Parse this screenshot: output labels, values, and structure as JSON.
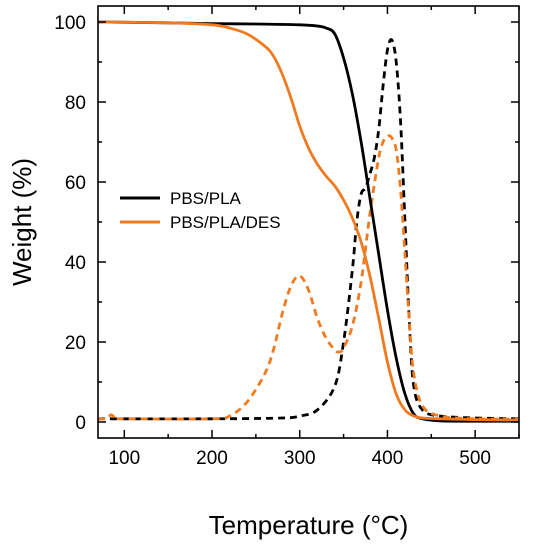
{
  "chart_data": {
    "type": "line",
    "xlabel": "Temperature (°C)",
    "ylabel": "Weight (%)",
    "xlim": [
      70,
      550
    ],
    "ylim": [
      -4,
      104
    ],
    "x_ticks": [
      100,
      200,
      300,
      400,
      500
    ],
    "y_ticks": [
      0,
      20,
      40,
      60,
      80,
      100
    ],
    "legend_position": "center-left",
    "series": [
      {
        "name": "PBS/PLA",
        "color": "#000000",
        "dash": "solid",
        "x": [
          70,
          150,
          200,
          250,
          300,
          320,
          330,
          340,
          350,
          360,
          370,
          380,
          390,
          400,
          410,
          420,
          430,
          440,
          460,
          500,
          550
        ],
        "y": [
          100,
          99.8,
          99.6,
          99.5,
          99.3,
          99,
          98.5,
          97,
          91,
          82,
          70,
          56,
          42,
          28,
          16,
          7,
          2,
          0.8,
          0.3,
          0.2,
          0.2
        ]
      },
      {
        "name": "PBS/PLA/DES",
        "color": "#f07a20",
        "dash": "solid",
        "x": [
          70,
          150,
          200,
          220,
          240,
          260,
          270,
          280,
          290,
          300,
          310,
          320,
          330,
          340,
          350,
          360,
          370,
          380,
          390,
          400,
          410,
          420,
          430,
          440,
          460,
          500,
          550
        ],
        "y": [
          100,
          99.8,
          99.3,
          98.5,
          97,
          94,
          91.5,
          87,
          81,
          74,
          68.5,
          64.5,
          61.5,
          59,
          55.5,
          51,
          45,
          36.5,
          26,
          15,
          7,
          3,
          1.5,
          1,
          0.8,
          0.6,
          0.5
        ]
      },
      {
        "name": "",
        "color": "#000000",
        "dash": "dashed",
        "x": [
          70,
          200,
          280,
          300,
          320,
          340,
          350,
          360,
          365,
          370,
          375,
          380,
          385,
          390,
          395,
          400,
          405,
          410,
          415,
          420,
          425,
          430,
          440,
          460,
          500,
          550
        ],
        "y": [
          0.8,
          0.8,
          1.0,
          1.5,
          3,
          9,
          20,
          38,
          50,
          57,
          58.5,
          62,
          66,
          73,
          84,
          93,
          95.5,
          90,
          75,
          50,
          25,
          9,
          3,
          1.5,
          1,
          0.8
        ]
      },
      {
        "name": "",
        "color": "#f07a20",
        "dash": "dashed",
        "x": [
          70,
          80,
          85,
          90,
          100,
          200,
          220,
          240,
          260,
          270,
          280,
          290,
          300,
          310,
          320,
          330,
          340,
          345,
          350,
          360,
          370,
          380,
          390,
          395,
          400,
          405,
          410,
          415,
          420,
          425,
          430,
          440,
          460,
          500,
          550
        ],
        "y": [
          0.8,
          0.8,
          1.8,
          1.0,
          0.8,
          0.8,
          1.5,
          5,
          12,
          18,
          27,
          34,
          36.5,
          33,
          26,
          21,
          18,
          17.5,
          18.5,
          24,
          35,
          52,
          66,
          70,
          71.5,
          71,
          68,
          58,
          42,
          25,
          12,
          4,
          1.5,
          0.8,
          0.7
        ]
      }
    ]
  }
}
